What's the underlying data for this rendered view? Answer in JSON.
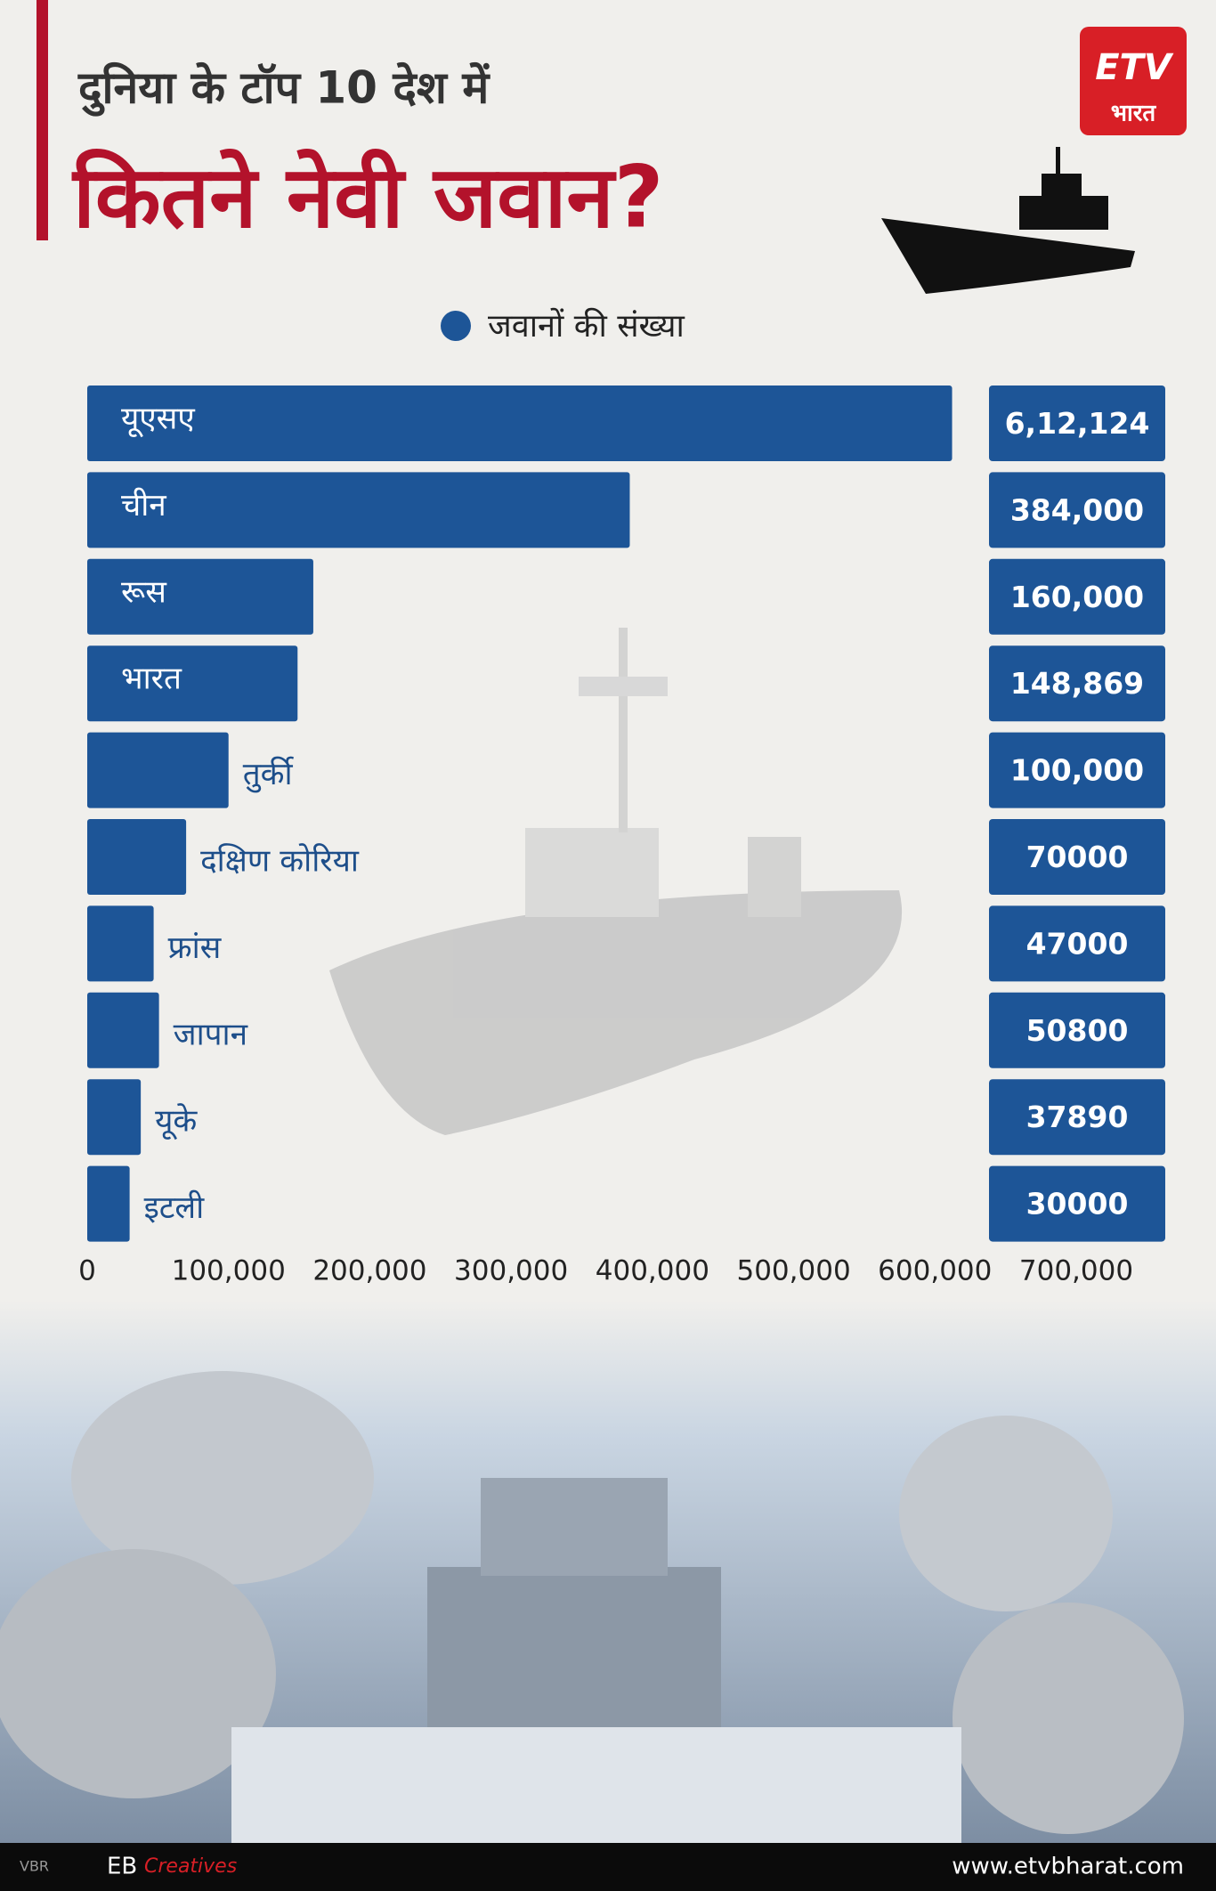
{
  "chart_data": {
    "type": "bar",
    "orientation": "horizontal",
    "subtitle": "दुनिया के टॉप 10 देश में",
    "title": "कितने नेवी जवान?",
    "categories": [
      "यूएसए",
      "चीन",
      "रूस",
      "भारत",
      "तुर्की",
      "दक्षिण कोरिया",
      "फ्रांस",
      "जापान",
      "यूके",
      "इटली"
    ],
    "series": [
      {
        "name": "जवानों की संख्या",
        "color": "#1d5597",
        "values": [
          612124,
          384000,
          160000,
          148869,
          100000,
          70000,
          47000,
          50800,
          37890,
          30000
        ],
        "value_labels": [
          "6,12,124",
          "384,000",
          "160,000",
          "148,869",
          "100,000",
          "70000",
          "47000",
          "50800",
          "37890",
          "30000"
        ]
      }
    ],
    "xlim": [
      0,
      700000
    ],
    "xticks": [
      0,
      {
        "value": 100000,
        "label": "100,000"
      },
      {
        "value": 200000,
        "label": "200,000"
      },
      {
        "value": 300000,
        "label": "300,000"
      },
      {
        "value": 400000,
        "label": "400,000"
      },
      {
        "value": 500000,
        "label": "500,000"
      },
      {
        "value": 600000,
        "label": "600,000"
      },
      {
        "value": 700000,
        "label": "700,000"
      }
    ],
    "legend": "top",
    "grid": false
  },
  "branding": {
    "logo": "ETV",
    "logo_sub": "भारत",
    "tag": "VBR",
    "credit": "EB",
    "credit_script": "Creatives",
    "website": "www.etvbharat.com"
  }
}
